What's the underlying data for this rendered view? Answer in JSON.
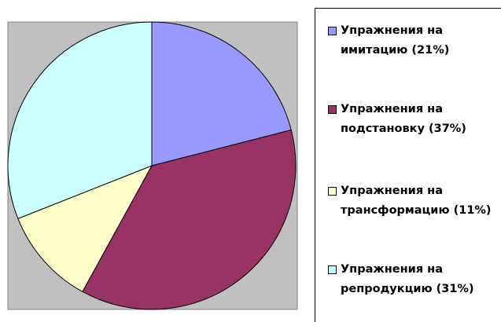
{
  "chart_data": {
    "type": "pie",
    "categories": [
      "Упражнения на имитацию (21%)",
      "Упражнения на подстановку (37%)",
      "Упражнения на трансформацию (11%)",
      "Упражнения на репродукцию (31%)"
    ],
    "values": [
      21,
      37,
      11,
      31
    ],
    "colors": [
      "#9999ff",
      "#993366",
      "#ffffcc",
      "#ccffff"
    ],
    "legend": "right"
  }
}
